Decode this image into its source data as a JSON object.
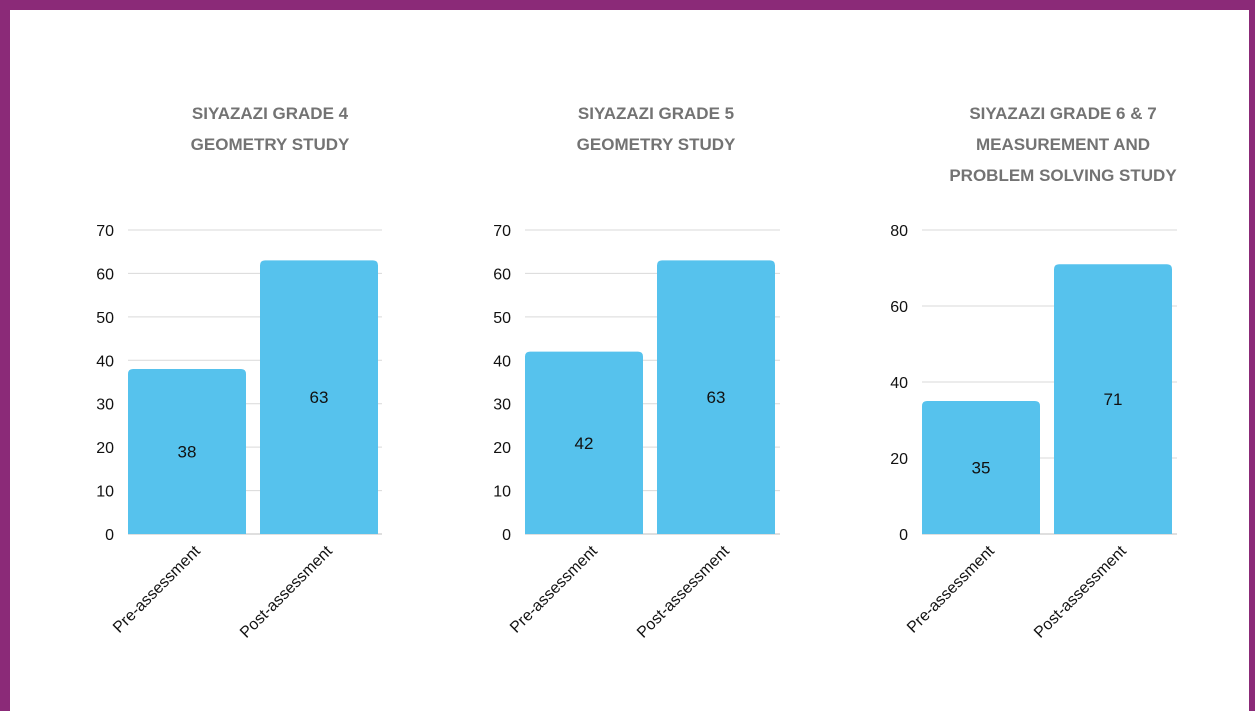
{
  "colors": {
    "frame": "#8b2a78",
    "bar": "#56c2ed",
    "grid": "#d9d9d9",
    "title": "#737373"
  },
  "chart_data": [
    {
      "type": "bar",
      "title_lines": [
        "SIYAZAZI GRADE 4",
        "GEOMETRY STUDY"
      ],
      "categories": [
        "Pre-assessment",
        "Post-assessment"
      ],
      "values": [
        38,
        63
      ],
      "data_labels": [
        "38",
        "63"
      ],
      "ylim": [
        0,
        70
      ],
      "yticks": [
        0,
        10,
        20,
        30,
        40,
        50,
        60,
        70
      ],
      "grid": true,
      "xlabel": "",
      "ylabel": ""
    },
    {
      "type": "bar",
      "title_lines": [
        "SIYAZAZI GRADE 5",
        "GEOMETRY STUDY"
      ],
      "categories": [
        "Pre-assessment",
        "Post-assessment"
      ],
      "values": [
        42,
        63
      ],
      "data_labels": [
        "42",
        "63"
      ],
      "ylim": [
        0,
        70
      ],
      "yticks": [
        0,
        10,
        20,
        30,
        40,
        50,
        60,
        70
      ],
      "grid": true,
      "xlabel": "",
      "ylabel": ""
    },
    {
      "type": "bar",
      "title_lines": [
        "SIYAZAZI GRADE 6 & 7",
        "MEASUREMENT AND",
        "PROBLEM SOLVING STUDY"
      ],
      "categories": [
        "Pre-assessment",
        "Post-assessment"
      ],
      "values": [
        35,
        71
      ],
      "data_labels": [
        "35",
        "71"
      ],
      "ylim": [
        0,
        80
      ],
      "yticks": [
        0,
        20,
        40,
        60,
        80
      ],
      "grid": true,
      "xlabel": "",
      "ylabel": ""
    }
  ]
}
